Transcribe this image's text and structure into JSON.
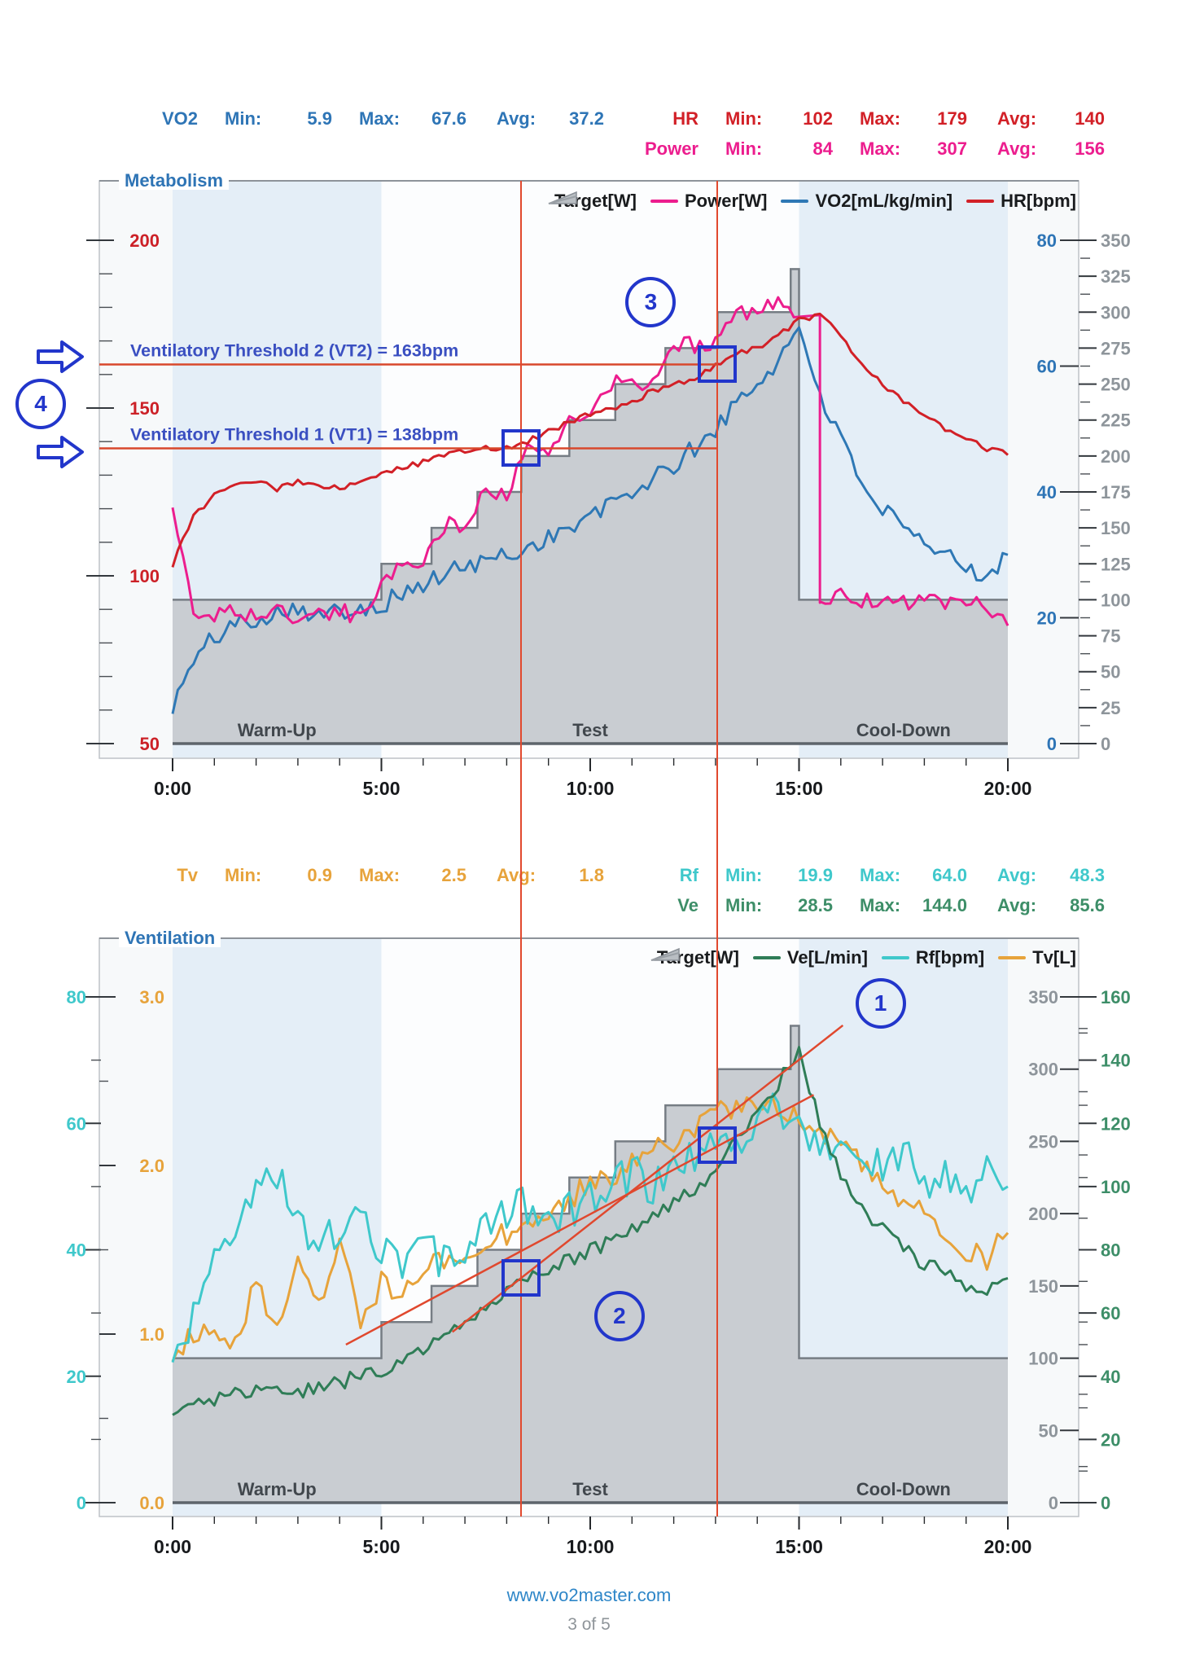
{
  "labels": {
    "min": "Min:",
    "max": "Max:",
    "avg": "Avg:"
  },
  "stats_top": {
    "left": [
      {
        "name": "VO2",
        "min": "5.9",
        "max": "67.6",
        "avg": "37.2",
        "color": "#2e75b6"
      }
    ],
    "right": [
      {
        "name": "HR",
        "min": "102",
        "max": "179",
        "avg": "140",
        "color": "#d22027"
      },
      {
        "name": "Power",
        "min": "84",
        "max": "307",
        "avg": "156",
        "color": "#ec1d8e"
      }
    ]
  },
  "stats_mid": {
    "left": [
      {
        "name": "Tv",
        "min": "0.9",
        "max": "2.5",
        "avg": "1.8",
        "color": "#e7a33b"
      }
    ],
    "right": [
      {
        "name": "Rf",
        "min": "19.9",
        "max": "64.0",
        "avg": "48.3",
        "color": "#3fc8cb"
      },
      {
        "name": "Ve",
        "min": "28.5",
        "max": "144.0",
        "avg": "85.6",
        "color": "#3d8e68"
      }
    ]
  },
  "footer": {
    "link": "www.vo2master.com",
    "page": "3 of 5"
  },
  "chart_data": [
    {
      "type": "line",
      "title": "Metabolism",
      "x": {
        "ticks": [
          "0:00",
          "5:00",
          "10:00",
          "15:00",
          "20:00"
        ],
        "tick_minutes": [
          0,
          5,
          10,
          15,
          20
        ],
        "minor_every_min": 1,
        "range_min": [
          0,
          20
        ]
      },
      "t_step_min": 0.5,
      "sections": [
        {
          "label": "Warm-Up",
          "from": 0,
          "to": 5,
          "shaded": true
        },
        {
          "label": "Test",
          "from": 5,
          "to": 15,
          "shaded": false
        },
        {
          "label": "Cool-Down",
          "from": 15,
          "to": 20,
          "shaded": true
        }
      ],
      "axes": [
        {
          "id": "hr",
          "side": "left",
          "color": "#cc2127",
          "min": 50,
          "max": 200,
          "major": 50,
          "minor": 10
        },
        {
          "id": "vo2",
          "side": "right-inner",
          "color": "#2e75b6",
          "min": 0,
          "max": 80,
          "major": 20,
          "minor": 0
        },
        {
          "id": "watts",
          "side": "right-outer",
          "color": "#8e959b",
          "min": 0,
          "max": 350,
          "major": 25,
          "minor": 12.5
        }
      ],
      "legend": [
        {
          "label": "Target[W]",
          "icon": "ramp",
          "color": "#b9bec3"
        },
        {
          "label": "Power[W]",
          "icon": "line",
          "color": "#ec1d8e"
        },
        {
          "label": "VO2[mL/kg/min]",
          "icon": "line",
          "color": "#2e78b5"
        },
        {
          "label": "HR[bpm]",
          "icon": "line",
          "color": "#d22027"
        }
      ],
      "series": [
        {
          "name": "Target[W]",
          "axis": "watts",
          "type": "step_area",
          "color_fill": "#c9cdd2",
          "color_edge": "#767d84",
          "steps": [
            [
              0,
              100
            ],
            [
              5,
              125
            ],
            [
              6.2,
              150
            ],
            [
              7.3,
              175
            ],
            [
              8.35,
              200
            ],
            [
              9.5,
              225
            ],
            [
              10.6,
              250
            ],
            [
              11.8,
              275
            ],
            [
              13.05,
              300
            ],
            [
              14.8,
              330
            ],
            [
              15,
              100
            ]
          ],
          "end_min": 20
        },
        {
          "name": "VO2[mL/kg/min]",
          "axis": "vo2",
          "color": "#2e78b5",
          "noise": 1.6,
          "values": [
            5.9,
            13,
            17,
            19,
            20,
            21,
            22,
            20,
            21,
            22,
            22,
            24,
            25,
            27,
            28,
            29,
            30,
            31,
            33,
            34,
            36,
            38,
            40,
            42,
            44,
            47,
            50,
            54,
            57,
            61,
            66,
            56,
            48,
            42,
            37,
            34,
            31,
            30,
            28,
            27,
            30
          ]
        },
        {
          "name": "Power[W]",
          "axis": "watts",
          "color": "#ec1d8e",
          "noise": 6,
          "values": [
            165,
            90,
            90,
            92,
            89,
            91,
            88,
            90,
            92,
            89,
            108,
            128,
            126,
            152,
            150,
            177,
            175,
            203,
            200,
            227,
            225,
            251,
            249,
            253,
            279,
            276,
            281,
            303,
            299,
            306,
            298,
            98,
            102,
            99,
            101,
            98,
            100,
            97,
            100,
            96,
            82
          ]
        },
        {
          "name": "HR[bpm]",
          "axis": "hr",
          "color": "#d22027",
          "noise": 0.9,
          "values": [
            103,
            118,
            124,
            127,
            128,
            126,
            128,
            127,
            126,
            128,
            130,
            132,
            134,
            136,
            137,
            138,
            138,
            140,
            143,
            146,
            148,
            150,
            152,
            155,
            157,
            159,
            163,
            166,
            168,
            172,
            176,
            178,
            171,
            163,
            157,
            152,
            148,
            144,
            141,
            138,
            136
          ]
        }
      ],
      "annotations": {
        "vlines_min": [
          8.35,
          13.05
        ],
        "hlines": [
          {
            "axis": "hr",
            "value": 163,
            "to_min": 13.05,
            "label": "Ventilatory Threshold 2 (VT2) = 163bpm"
          },
          {
            "axis": "hr",
            "value": 138,
            "to_min": 13.05,
            "label": "Ventilatory Threshold 1 (VT1) = 138bpm"
          }
        ],
        "squares": [
          {
            "t": 8.35,
            "axis": "hr",
            "value": 138
          },
          {
            "t": 13.05,
            "axis": "hr",
            "value": 163
          }
        ],
        "circles": [
          {
            "label": "3",
            "t": 11.45,
            "axis": "hr",
            "value": 181.5
          }
        ],
        "gutter": {
          "circle_label": "4",
          "arrows_at_hr": [
            163,
            138
          ]
        }
      }
    },
    {
      "type": "line",
      "title": "Ventilation",
      "x": {
        "ticks": [
          "0:00",
          "5:00",
          "10:00",
          "15:00",
          "20:00"
        ],
        "tick_minutes": [
          0,
          5,
          10,
          15,
          20
        ],
        "minor_every_min": 1,
        "range_min": [
          0,
          20
        ]
      },
      "t_step_min": 0.5,
      "sections": [
        {
          "label": "Warm-Up",
          "from": 0,
          "to": 5,
          "shaded": true
        },
        {
          "label": "Test",
          "from": 5,
          "to": 15,
          "shaded": false
        },
        {
          "label": "Cool-Down",
          "from": 15,
          "to": 20,
          "shaded": true
        }
      ],
      "axes": [
        {
          "id": "rf",
          "side": "left-outer",
          "color": "#3fc8cb",
          "min": 0,
          "max": 80,
          "major": 20,
          "minor": 10
        },
        {
          "id": "tv",
          "side": "left-inner",
          "color": "#e7a33b",
          "min": 0,
          "max": 3,
          "major": 1,
          "minor": 0.5,
          "decimals": 1
        },
        {
          "id": "watts",
          "side": "right-inner",
          "color": "#8e959b",
          "min": 0,
          "max": 350,
          "major": 50,
          "minor": 25
        },
        {
          "id": "ve",
          "side": "right-outer",
          "color": "#3d8e68",
          "min": 0,
          "max": 160,
          "major": 20,
          "minor": 10
        }
      ],
      "legend": [
        {
          "label": "Target[W]",
          "icon": "ramp",
          "color": "#b9bec3"
        },
        {
          "label": "Ve[L/min]",
          "icon": "line",
          "color": "#2f7d57"
        },
        {
          "label": "Rf[bpm]",
          "icon": "line",
          "color": "#3fc8cb"
        },
        {
          "label": "Tv[L]",
          "icon": "line",
          "color": "#e7a33b"
        }
      ],
      "series": [
        {
          "name": "Target[W]",
          "axis": "watts",
          "type": "step_area",
          "color_fill": "#c9cdd2",
          "color_edge": "#767d84",
          "steps": [
            [
              0,
              100
            ],
            [
              5,
              125
            ],
            [
              6.2,
              150
            ],
            [
              7.3,
              175
            ],
            [
              8.35,
              200
            ],
            [
              9.5,
              225
            ],
            [
              10.6,
              250
            ],
            [
              11.8,
              275
            ],
            [
              13.05,
              300
            ],
            [
              14.8,
              330
            ],
            [
              15,
              100
            ]
          ],
          "end_min": 20
        },
        {
          "name": "Tv[L]",
          "axis": "tv",
          "color": "#e7a33b",
          "noise": 0.07,
          "values": [
            0.9,
            1.0,
            1.05,
            0.95,
            1.3,
            1.05,
            1.45,
            1.15,
            1.5,
            1.1,
            1.3,
            1.25,
            1.4,
            1.45,
            1.5,
            1.55,
            1.6,
            1.65,
            1.75,
            1.8,
            1.9,
            1.95,
            2.0,
            2.1,
            2.15,
            2.2,
            2.3,
            2.35,
            2.4,
            2.35,
            2.3,
            2.2,
            2.1,
            2.0,
            1.9,
            1.8,
            1.7,
            1.6,
            1.5,
            1.45,
            1.6
          ]
        },
        {
          "name": "Rf[bpm]",
          "axis": "rf",
          "color": "#3fc8cb",
          "noise": 3.2,
          "values": [
            20,
            30,
            38,
            42,
            48,
            52,
            45,
            40,
            44,
            47,
            40,
            37,
            42,
            38,
            41,
            44,
            46,
            47,
            44,
            46,
            48,
            50,
            52,
            50,
            53,
            55,
            57,
            58,
            60,
            62,
            60,
            57,
            55,
            52,
            54,
            56,
            50,
            53,
            47,
            52,
            50
          ]
        },
        {
          "name": "Ve[L/min]",
          "axis": "ve",
          "color": "#2f7d57",
          "noise": 2.5,
          "values": [
            28.5,
            30,
            33,
            34,
            35,
            36,
            35,
            37,
            38,
            40,
            42,
            45,
            48,
            52,
            56,
            61,
            66,
            72,
            74,
            77,
            80,
            83,
            86,
            90,
            94,
            99,
            106,
            114,
            124,
            133,
            142,
            120,
            104,
            94,
            86,
            80,
            76,
            72,
            69,
            66,
            71
          ]
        }
      ],
      "annotations": {
        "vlines_min": [
          8.35,
          13.05
        ],
        "squares": [
          {
            "t": 8.35,
            "axis": "ve",
            "value": 71
          },
          {
            "t": 13.05,
            "axis": "ve",
            "value": 113
          }
        ],
        "circles": [
          {
            "label": "1",
            "t": 16.95,
            "axis": "ve",
            "value": 158
          },
          {
            "label": "2",
            "t": 10.7,
            "axis": "ve",
            "value": 59
          }
        ],
        "trend_lines": [
          {
            "axis": "ve",
            "t1": 4.15,
            "v1": 50,
            "t2": 15.35,
            "v2": 129
          },
          {
            "axis": "ve",
            "t1": 6.7,
            "v1": 54,
            "t2": 16.05,
            "v2": 151
          }
        ]
      }
    }
  ]
}
